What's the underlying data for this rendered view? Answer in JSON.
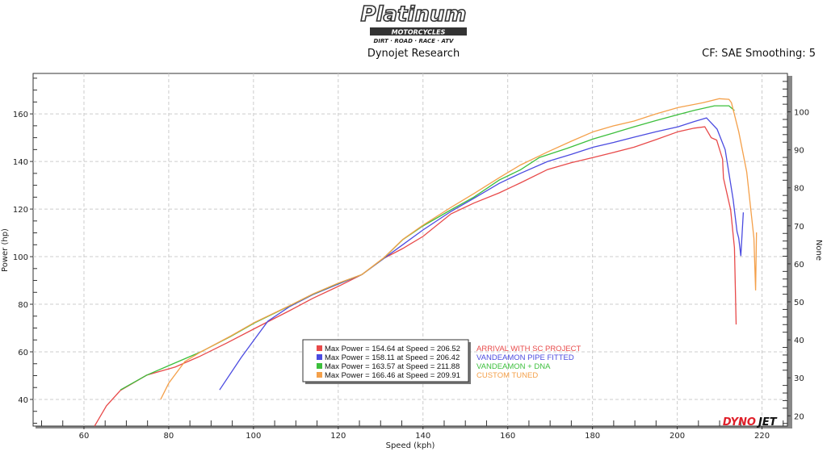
{
  "header": {
    "logo_title": "Platinum",
    "logo_sub": "MOTORCYCLES",
    "logo_tagline": "DIRT · ROAD · RACE · ATV",
    "title": "Dynojet Research",
    "settings": "CF: SAE Smoothing: 5"
  },
  "footer_logo": {
    "left": "DYNO",
    "right": "JET"
  },
  "chart_data": {
    "type": "line",
    "title": "Dynojet Research",
    "xlabel": "Speed (kph)",
    "ylabel": "Power (hp)",
    "y2label": "None",
    "xlim": [
      48,
      226
    ],
    "ylim": [
      28.8,
      177
    ],
    "y2lim": [
      17.3,
      110.1
    ],
    "xticks": [
      60,
      80,
      100,
      120,
      140,
      160,
      180,
      200,
      220
    ],
    "yticks": [
      40,
      60,
      80,
      100,
      120,
      140,
      160
    ],
    "y2ticks": [
      20,
      30,
      40,
      50,
      60,
      70,
      80,
      90,
      100
    ],
    "grid": true,
    "legend_placement": "bottom-center",
    "series": [
      {
        "name": "ARRIVAL WITH SC PROJECT",
        "color": "#e84a4a",
        "legend": "Max Power = 154.64 at Speed = 206.52",
        "points": [
          [
            62.5,
            28.8
          ],
          [
            65.3,
            37.3
          ],
          [
            68.6,
            43.8
          ],
          [
            74.8,
            50.2
          ],
          [
            81.5,
            53.6
          ],
          [
            87.2,
            58
          ],
          [
            93.7,
            63.7
          ],
          [
            100.5,
            70
          ],
          [
            108.5,
            77.3
          ],
          [
            114,
            82.5
          ],
          [
            120,
            87.5
          ],
          [
            125.6,
            92.5
          ],
          [
            130.8,
            99.3
          ],
          [
            135.2,
            103.4
          ],
          [
            140,
            108.5
          ],
          [
            146.6,
            118
          ],
          [
            152,
            122.5
          ],
          [
            158,
            126.8
          ],
          [
            163,
            131
          ],
          [
            169.4,
            136.6
          ],
          [
            175,
            139.5
          ],
          [
            180.2,
            141.7
          ],
          [
            185,
            143.8
          ],
          [
            189.8,
            146
          ],
          [
            195,
            149.2
          ],
          [
            200.2,
            152.5
          ],
          [
            204,
            154
          ],
          [
            206.5,
            154.6
          ],
          [
            208,
            150
          ],
          [
            209.3,
            149
          ],
          [
            210.7,
            141
          ],
          [
            210.9,
            133
          ],
          [
            212.6,
            119.7
          ],
          [
            213.5,
            103.7
          ],
          [
            213.9,
            71.5
          ]
        ]
      },
      {
        "name": "VANDEAMON PIPE FITTED",
        "color": "#4b4be0",
        "legend": "Max Power = 158.11 at Speed = 206.42",
        "points": [
          [
            92,
            44
          ],
          [
            97.1,
            57.6
          ],
          [
            100.3,
            65.4
          ],
          [
            103.4,
            72.9
          ],
          [
            108.5,
            79
          ],
          [
            114,
            84
          ],
          [
            120,
            88.5
          ],
          [
            125.6,
            92.5
          ],
          [
            130.8,
            99.3
          ],
          [
            135.2,
            105
          ],
          [
            140,
            111.2
          ],
          [
            146.6,
            119
          ],
          [
            152,
            124.5
          ],
          [
            158,
            130.8
          ],
          [
            163,
            135
          ],
          [
            169.4,
            140
          ],
          [
            175,
            143
          ],
          [
            180.2,
            146
          ],
          [
            185,
            148
          ],
          [
            189.8,
            150.2
          ],
          [
            195,
            152.5
          ],
          [
            200.2,
            154.6
          ],
          [
            204,
            156.8
          ],
          [
            206.9,
            158.3
          ],
          [
            209.4,
            153.6
          ],
          [
            211.3,
            145
          ],
          [
            213.2,
            124
          ],
          [
            214.1,
            110.5
          ],
          [
            214.5,
            107.8
          ],
          [
            215,
            100.3
          ],
          [
            215.6,
            118.6
          ]
        ]
      },
      {
        "name": "VANDEAMON + DNA",
        "color": "#3cbf3c",
        "legend": "Max Power = 163.57 at Speed = 211.88",
        "points": [
          [
            68.6,
            44
          ],
          [
            74.8,
            50.2
          ],
          [
            80,
            54.2
          ],
          [
            87.6,
            60
          ],
          [
            94.6,
            66.4
          ],
          [
            100.3,
            72.2
          ],
          [
            108.5,
            79.3
          ],
          [
            114,
            84.2
          ],
          [
            120,
            88.8
          ],
          [
            125.6,
            92.5
          ],
          [
            130.8,
            99.5
          ],
          [
            135.2,
            107.1
          ],
          [
            140,
            112.9
          ],
          [
            146.6,
            119.7
          ],
          [
            152,
            125
          ],
          [
            158,
            132.2
          ],
          [
            163,
            136.5
          ],
          [
            167.5,
            141.7
          ],
          [
            174,
            145.5
          ],
          [
            180.2,
            149.5
          ],
          [
            185,
            152
          ],
          [
            189.8,
            154.6
          ],
          [
            195,
            157.2
          ],
          [
            200.2,
            159.7
          ],
          [
            204,
            161.5
          ],
          [
            208.8,
            163.4
          ],
          [
            212.2,
            163.4
          ],
          [
            213.5,
            161.4
          ]
        ]
      },
      {
        "name": "CUSTOM TUNED",
        "color": "#f4a04a",
        "legend": "Max Power = 166.46 at Speed = 209.91",
        "points": [
          [
            78.1,
            40
          ],
          [
            80,
            46.8
          ],
          [
            83.8,
            55.9
          ],
          [
            87.6,
            60
          ],
          [
            94.6,
            66.6
          ],
          [
            100.3,
            72.4
          ],
          [
            108.5,
            79.4
          ],
          [
            114,
            84.3
          ],
          [
            120,
            88.9
          ],
          [
            125.6,
            92.5
          ],
          [
            130.8,
            99.6
          ],
          [
            135.2,
            107.2
          ],
          [
            140,
            113.2
          ],
          [
            146.6,
            120.7
          ],
          [
            152,
            126.5
          ],
          [
            158,
            133.2
          ],
          [
            163,
            138.5
          ],
          [
            169.4,
            144
          ],
          [
            175,
            148.5
          ],
          [
            180.2,
            152.5
          ],
          [
            185,
            155
          ],
          [
            189.8,
            157
          ],
          [
            195,
            160
          ],
          [
            200.2,
            162.7
          ],
          [
            206.1,
            164.7
          ],
          [
            209.9,
            166.4
          ],
          [
            212.2,
            166.1
          ],
          [
            212.8,
            164.7
          ],
          [
            214.5,
            152.5
          ],
          [
            216.4,
            135.6
          ],
          [
            218.1,
            107.8
          ],
          [
            218.5,
            85.8
          ],
          [
            218.7,
            110.2
          ]
        ]
      }
    ]
  }
}
